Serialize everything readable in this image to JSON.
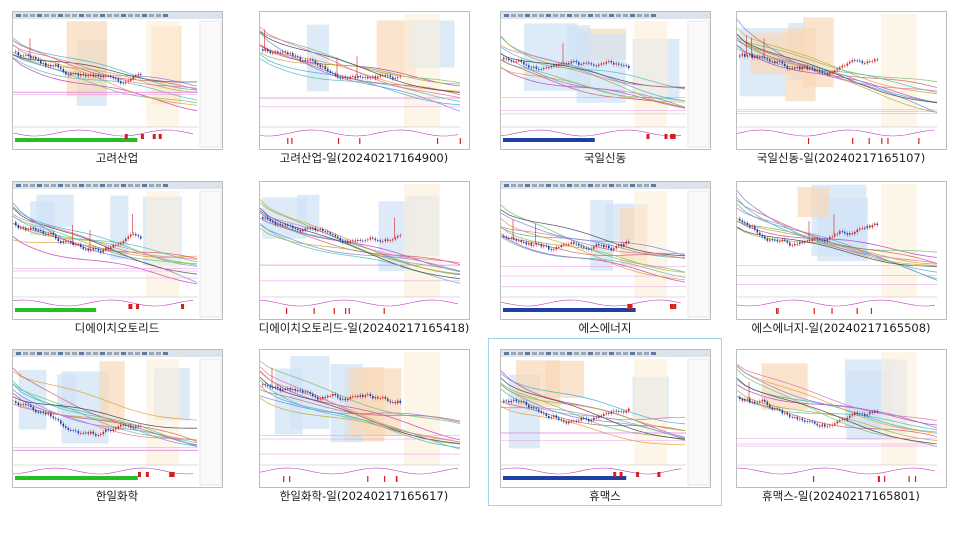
{
  "gallery": {
    "items": [
      {
        "caption": "고려산업",
        "variant": "screen",
        "selected": false
      },
      {
        "caption": "고려산업-일(20240217164900)",
        "variant": "daily",
        "selected": false
      },
      {
        "caption": "국일신동",
        "variant": "screen",
        "selected": false
      },
      {
        "caption": "국일신동-일(20240217165107)",
        "variant": "daily",
        "selected": false
      },
      {
        "caption": "디에이치오토리드",
        "variant": "screen",
        "selected": false
      },
      {
        "caption": "디에이치오토리드-일(20240217165418)",
        "variant": "daily",
        "selected": false
      },
      {
        "caption": "에스에너지",
        "variant": "screen",
        "selected": false
      },
      {
        "caption": "에스에너지-일(20240217165508)",
        "variant": "daily",
        "selected": false
      },
      {
        "caption": "한일화학",
        "variant": "screen",
        "selected": false
      },
      {
        "caption": "한일화학-일(20240217165617)",
        "variant": "daily",
        "selected": false
      },
      {
        "caption": "휴맥스",
        "variant": "screen",
        "selected": true
      },
      {
        "caption": "휴맥스-일(20240217165801)",
        "variant": "daily",
        "selected": false
      }
    ]
  },
  "colors": {
    "selection_border": "#9fd3ee",
    "caption_text": "#1a1a1a",
    "chart_background": "#ffffff",
    "shade_orange": "#f8d9b8",
    "shade_blue": "#cfe3f7",
    "candle_up": "#d22020",
    "candle_down": "#1f3fa8",
    "volume_green": "#22c022",
    "volume_blue": "#1f3fa8"
  }
}
